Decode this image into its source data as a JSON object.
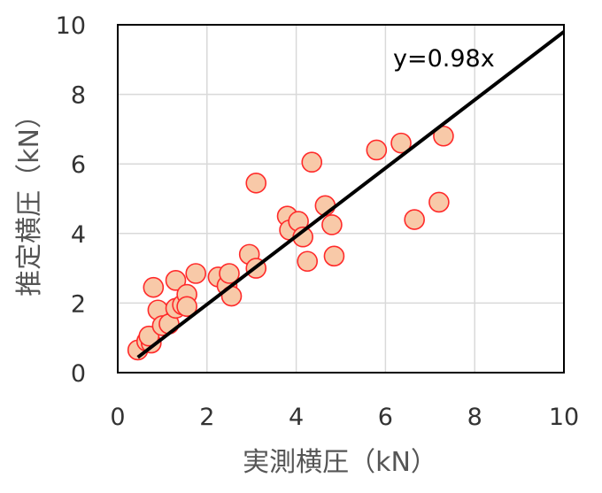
{
  "chart_data": {
    "type": "scatter",
    "xlabel": "実測横圧（kN）",
    "ylabel": "推定横圧（kN）",
    "xlim": [
      0,
      10
    ],
    "ylim": [
      0,
      10
    ],
    "xticks": [
      "0",
      "2",
      "4",
      "6",
      "8",
      "10"
    ],
    "yticks": [
      "0",
      "2",
      "4",
      "6",
      "8",
      "10"
    ],
    "grid": true,
    "annotation": "y=0.98x",
    "fit_line": {
      "slope": 0.98,
      "x": [
        0.45,
        10
      ]
    },
    "marker_fill": "#f8c9a8",
    "marker_stroke": "#ff2a2a",
    "line_color": "#000000",
    "points": [
      [
        0.45,
        0.65
      ],
      [
        0.65,
        0.9
      ],
      [
        0.75,
        0.85
      ],
      [
        0.7,
        1.05
      ],
      [
        0.8,
        2.45
      ],
      [
        0.9,
        1.8
      ],
      [
        1.0,
        1.35
      ],
      [
        1.15,
        1.4
      ],
      [
        1.3,
        2.65
      ],
      [
        1.3,
        1.85
      ],
      [
        1.45,
        1.95
      ],
      [
        1.55,
        2.25
      ],
      [
        1.55,
        1.9
      ],
      [
        1.75,
        2.85
      ],
      [
        2.25,
        2.75
      ],
      [
        2.45,
        2.5
      ],
      [
        2.5,
        2.85
      ],
      [
        2.55,
        2.2
      ],
      [
        2.95,
        3.4
      ],
      [
        3.1,
        3.0
      ],
      [
        3.1,
        5.45
      ],
      [
        3.8,
        4.5
      ],
      [
        3.85,
        4.1
      ],
      [
        4.05,
        4.35
      ],
      [
        4.15,
        3.9
      ],
      [
        4.25,
        3.2
      ],
      [
        4.35,
        6.05
      ],
      [
        4.65,
        4.8
      ],
      [
        4.8,
        4.25
      ],
      [
        4.85,
        3.35
      ],
      [
        5.8,
        6.4
      ],
      [
        6.35,
        6.6
      ],
      [
        6.65,
        4.4
      ],
      [
        7.2,
        4.9
      ],
      [
        7.3,
        6.8
      ]
    ]
  }
}
